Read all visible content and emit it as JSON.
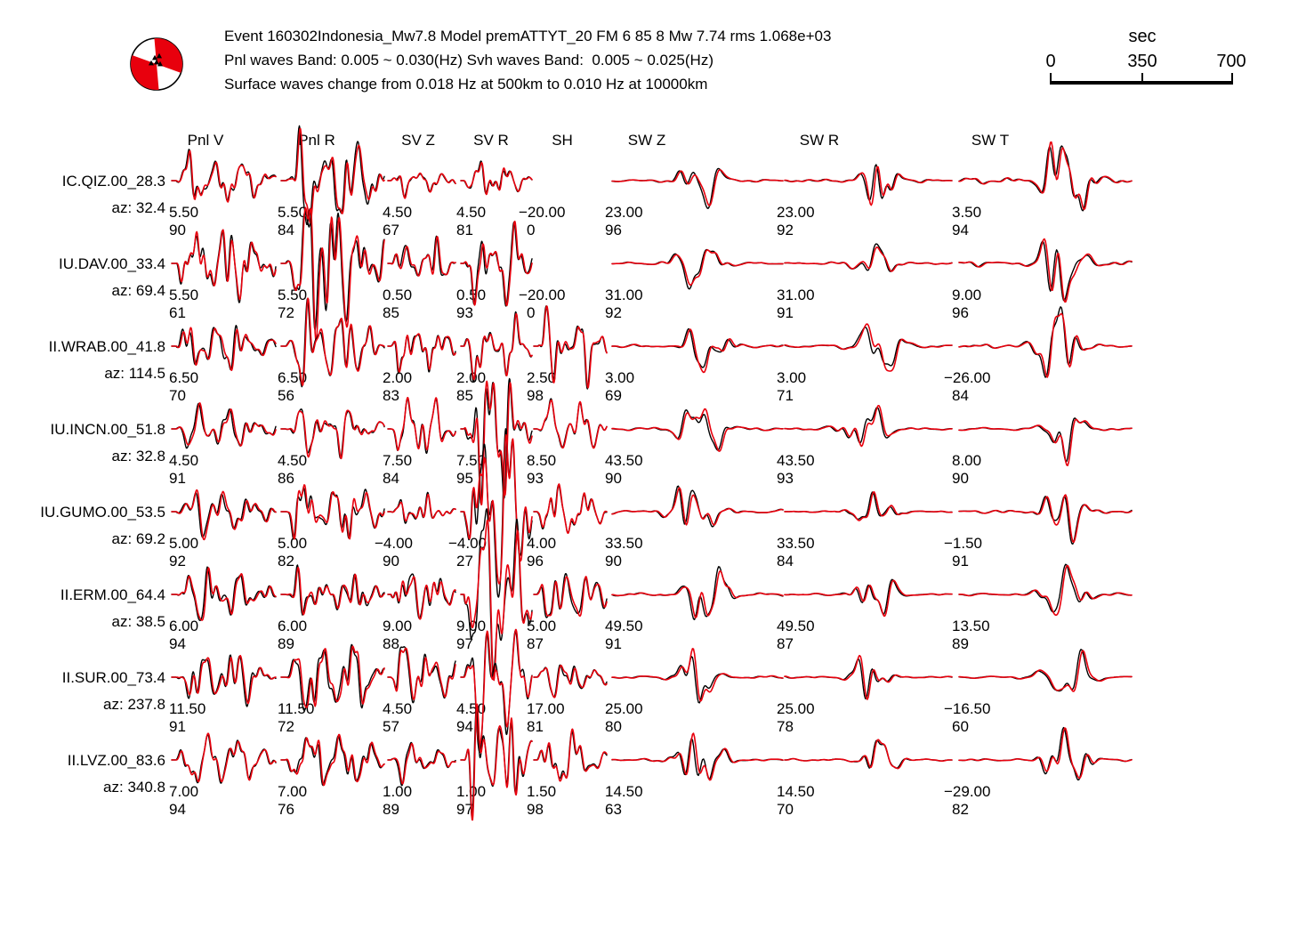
{
  "header": {
    "line1": "Event 160302Indonesia_Mw7.8 Model premATTYT_20 FM 6 85 8 Mw 7.74 rms 1.068e+03",
    "line2": "Pnl waves Band: 0.005 ~ 0.030(Hz) Svh waves Band:  0.005 ~ 0.025(Hz)",
    "line3": "Surface waves change from 0.018 Hz at 500km to 0.010 Hz at 10000km"
  },
  "timescale": {
    "title": "sec",
    "ticks": [
      "0",
      "350",
      "700"
    ]
  },
  "colors": {
    "observed": "#000000",
    "synthetic": "#e8000d"
  },
  "chart_data": {
    "type": "table",
    "title": "Event 160302Indonesia_Mw7.8 Model premATTYT_20 FM 6 85 8 Mw 7.74 rms 1.068e+03",
    "x_axis": {
      "label": "sec",
      "range": [
        0,
        700
      ]
    },
    "wave_columns": [
      "Pnl V",
      "Pnl R",
      "SV Z",
      "SV R",
      "SH",
      "SW Z",
      "SW R",
      "SW T"
    ],
    "cell_fields": [
      "time_shift",
      "cross_correlation"
    ],
    "stations": [
      {
        "name": "IC.QIZ.00_28.3",
        "az": "az: 32.4",
        "cells": [
          {
            "shift": "5.50",
            "corr": "90",
            "trace": true
          },
          {
            "shift": "5.50",
            "corr": "84",
            "trace": true
          },
          {
            "shift": "4.50",
            "corr": "67",
            "trace": true
          },
          {
            "shift": "4.50",
            "corr": "81",
            "trace": true
          },
          {
            "shift": "−20.00",
            "corr": "0",
            "trace": false
          },
          {
            "shift": "23.00",
            "corr": "96",
            "trace": true
          },
          {
            "shift": "23.00",
            "corr": "92",
            "trace": true
          },
          {
            "shift": "3.50",
            "corr": "94",
            "trace": true
          }
        ]
      },
      {
        "name": "IU.DAV.00_33.4",
        "az": "az: 69.4",
        "cells": [
          {
            "shift": "5.50",
            "corr": "61",
            "trace": true
          },
          {
            "shift": "5.50",
            "corr": "72",
            "trace": true
          },
          {
            "shift": "0.50",
            "corr": "85",
            "trace": true
          },
          {
            "shift": "0.50",
            "corr": "93",
            "trace": true
          },
          {
            "shift": "−20.00",
            "corr": "0",
            "trace": false
          },
          {
            "shift": "31.00",
            "corr": "92",
            "trace": true
          },
          {
            "shift": "31.00",
            "corr": "91",
            "trace": true
          },
          {
            "shift": "9.00",
            "corr": "96",
            "trace": true
          }
        ]
      },
      {
        "name": "II.WRAB.00_41.8",
        "az": "az: 114.5",
        "cells": [
          {
            "shift": "6.50",
            "corr": "70",
            "trace": true
          },
          {
            "shift": "6.50",
            "corr": "56",
            "trace": true
          },
          {
            "shift": "2.00",
            "corr": "83",
            "trace": true
          },
          {
            "shift": "2.00",
            "corr": "85",
            "trace": true
          },
          {
            "shift": "2.50",
            "corr": "98",
            "trace": true
          },
          {
            "shift": "3.00",
            "corr": "69",
            "trace": true
          },
          {
            "shift": "3.00",
            "corr": "71",
            "trace": true
          },
          {
            "shift": "−26.00",
            "corr": "84",
            "trace": true
          }
        ]
      },
      {
        "name": "IU.INCN.00_51.8",
        "az": "az: 32.8",
        "cells": [
          {
            "shift": "4.50",
            "corr": "91",
            "trace": true
          },
          {
            "shift": "4.50",
            "corr": "86",
            "trace": true
          },
          {
            "shift": "7.50",
            "corr": "84",
            "trace": true
          },
          {
            "shift": "7.50",
            "corr": "95",
            "trace": true
          },
          {
            "shift": "8.50",
            "corr": "93",
            "trace": true
          },
          {
            "shift": "43.50",
            "corr": "90",
            "trace": true
          },
          {
            "shift": "43.50",
            "corr": "93",
            "trace": true
          },
          {
            "shift": "8.00",
            "corr": "90",
            "trace": true
          }
        ]
      },
      {
        "name": "IU.GUMO.00_53.5",
        "az": "az: 69.2",
        "cells": [
          {
            "shift": "5.00",
            "corr": "92",
            "trace": true
          },
          {
            "shift": "5.00",
            "corr": "82",
            "trace": true
          },
          {
            "shift": "−4.00",
            "corr": "90",
            "trace": true
          },
          {
            "shift": "−4.00",
            "corr": "27",
            "trace": true
          },
          {
            "shift": "4.00",
            "corr": "96",
            "trace": true
          },
          {
            "shift": "33.50",
            "corr": "90",
            "trace": true
          },
          {
            "shift": "33.50",
            "corr": "84",
            "trace": true
          },
          {
            "shift": "−1.50",
            "corr": "91",
            "trace": true
          }
        ]
      },
      {
        "name": "II.ERM.00_64.4",
        "az": "az: 38.5",
        "cells": [
          {
            "shift": "6.00",
            "corr": "94",
            "trace": true
          },
          {
            "shift": "6.00",
            "corr": "89",
            "trace": true
          },
          {
            "shift": "9.00",
            "corr": "88",
            "trace": true
          },
          {
            "shift": "9.00",
            "corr": "97",
            "trace": true
          },
          {
            "shift": "5.00",
            "corr": "87",
            "trace": true
          },
          {
            "shift": "49.50",
            "corr": "91",
            "trace": true
          },
          {
            "shift": "49.50",
            "corr": "87",
            "trace": true
          },
          {
            "shift": "13.50",
            "corr": "89",
            "trace": true
          }
        ]
      },
      {
        "name": "II.SUR.00_73.4",
        "az": "az: 237.8",
        "cells": [
          {
            "shift": "11.50",
            "corr": "91",
            "trace": true
          },
          {
            "shift": "11.50",
            "corr": "72",
            "trace": true
          },
          {
            "shift": "4.50",
            "corr": "57",
            "trace": true
          },
          {
            "shift": "4.50",
            "corr": "94",
            "trace": true
          },
          {
            "shift": "17.00",
            "corr": "81",
            "trace": true
          },
          {
            "shift": "25.00",
            "corr": "80",
            "trace": true
          },
          {
            "shift": "25.00",
            "corr": "78",
            "trace": true
          },
          {
            "shift": "−16.50",
            "corr": "60",
            "trace": true
          }
        ]
      },
      {
        "name": "II.LVZ.00_83.6",
        "az": "az: 340.8",
        "cells": [
          {
            "shift": "7.00",
            "corr": "94",
            "trace": true
          },
          {
            "shift": "7.00",
            "corr": "76",
            "trace": true
          },
          {
            "shift": "1.00",
            "corr": "89",
            "trace": true
          },
          {
            "shift": "1.00",
            "corr": "97",
            "trace": true
          },
          {
            "shift": "1.50",
            "corr": "98",
            "trace": true
          },
          {
            "shift": "14.50",
            "corr": "63",
            "trace": true
          },
          {
            "shift": "14.50",
            "corr": "70",
            "trace": true
          },
          {
            "shift": "−29.00",
            "corr": "82",
            "trace": true
          }
        ]
      }
    ]
  }
}
